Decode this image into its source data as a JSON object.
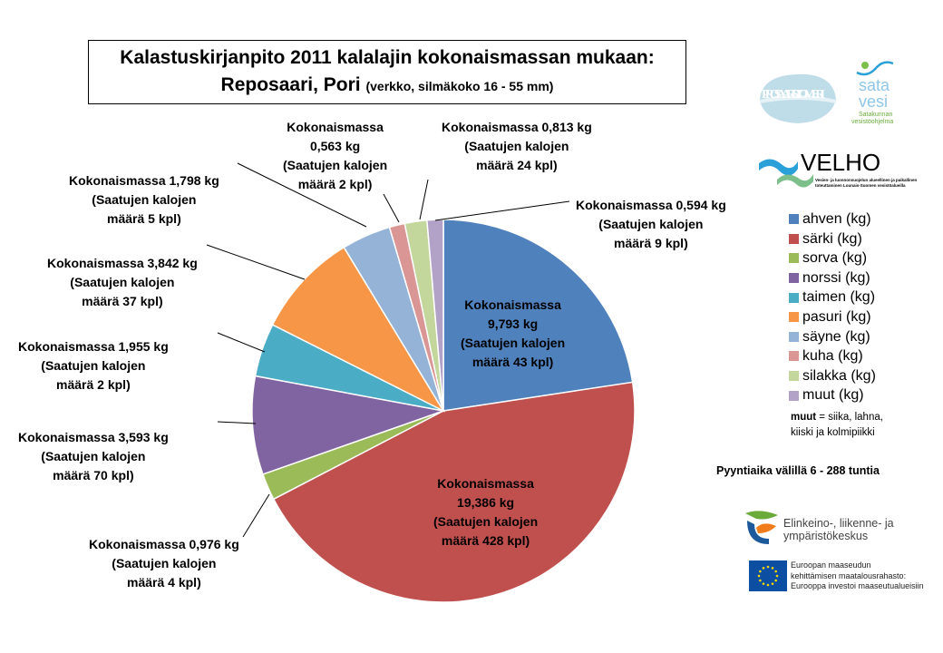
{
  "title": {
    "line1": "Kalastuskirjanpito 2011 kalalajin kokonaismassan mukaan:",
    "line2": "Reposaari, Pori",
    "line2_small": "(verkko, silmäkoko 16 - 55 mm)"
  },
  "chart_data": {
    "type": "pie",
    "start": "12 o'clock, clockwise",
    "unit": "kg",
    "slices": [
      {
        "name": "ahven (kg)",
        "value": 9.793,
        "count": 43,
        "color": "#4F81BD",
        "label": [
          "Kokonaismassa",
          "9,793 kg",
          "(Saatujen kalojen",
          "määrä 43 kpl)"
        ]
      },
      {
        "name": "särki (kg)",
        "value": 19.386,
        "count": 428,
        "color": "#C0504D",
        "label": [
          "Kokonaismassa",
          "19,386 kg",
          "(Saatujen kalojen",
          "määrä 428 kpl)"
        ]
      },
      {
        "name": "sorva (kg)",
        "value": 0.976,
        "count": 4,
        "color": "#9BBB59",
        "label": [
          "Kokonaismassa 0,976 kg",
          "(Saatujen kalojen",
          "määrä 4 kpl)"
        ]
      },
      {
        "name": "norssi (kg)",
        "value": 3.593,
        "count": 70,
        "color": "#8064A2",
        "label": [
          "Kokonaismassa 3,593 kg",
          "(Saatujen kalojen",
          "määrä 70 kpl)"
        ]
      },
      {
        "name": "taimen (kg)",
        "value": 1.955,
        "count": 2,
        "color": "#4BACC6",
        "label": [
          "Kokonaismassa 1,955 kg",
          "(Saatujen kalojen",
          "määrä 2 kpl)"
        ]
      },
      {
        "name": "pasuri (kg)",
        "value": 3.842,
        "count": 37,
        "color": "#F79646",
        "label": [
          "Kokonaismassa 3,842 kg",
          "(Saatujen kalojen",
          "määrä 37 kpl)"
        ]
      },
      {
        "name": "säyne (kg)",
        "value": 1.798,
        "count": 5,
        "color": "#95B3D7",
        "label": [
          "Kokonaismassa 1,798 kg",
          "(Saatujen kalojen",
          "määrä 5 kpl)"
        ]
      },
      {
        "name": "kuha (kg)",
        "value": 0.563,
        "count": 2,
        "color": "#DA9694",
        "label": [
          "Kokonaismassa",
          "0,563 kg",
          "(Saatujen kalojen",
          "määrä 2 kpl)"
        ]
      },
      {
        "name": "silakka (kg)",
        "value": 0.813,
        "count": 24,
        "color": "#C3D69B",
        "label": [
          "Kokonaismassa 0,813 kg",
          "(Saatujen kalojen",
          "määrä 24 kpl)"
        ]
      },
      {
        "name": "muut (kg)",
        "value": 0.594,
        "count": 9,
        "color": "#B3A2C7",
        "label": [
          "Kokonaismassa 0,594 kg",
          "(Saatujen kalojen",
          "määrä 9 kpl)"
        ]
      }
    ],
    "legend_position": "right"
  },
  "legend_note": {
    "bold": "muut",
    "rest": " = siika, lahna,",
    "line2": "kiiski ja kolmipiikki"
  },
  "fishing_time": "Pyyntiaika välillä 6 - 288 tuntia",
  "logos": {
    "pro": "PRO SAARISTOMERI",
    "satavesi": {
      "name1": "sata",
      "name2": "vesi",
      "sub1": "Satakunnan",
      "sub2": "vesistöohjelma"
    },
    "velho": {
      "name": "VELHO",
      "sub1": "Vesien- ja luonnonsuojelun alueellinen ja paikallinen",
      "sub2": "toteuttaminen Lounais-Suomen vesistöalueilla"
    },
    "ely": {
      "line1": "Elinkeino-, liikenne- ja",
      "line2": "ympäristökeskus"
    },
    "eu": {
      "line1": "Euroopan maaseudun",
      "line2": "kehittämisen maatalousrahasto:",
      "line3": "Eurooppa investoi maaseutualueisiin"
    }
  }
}
